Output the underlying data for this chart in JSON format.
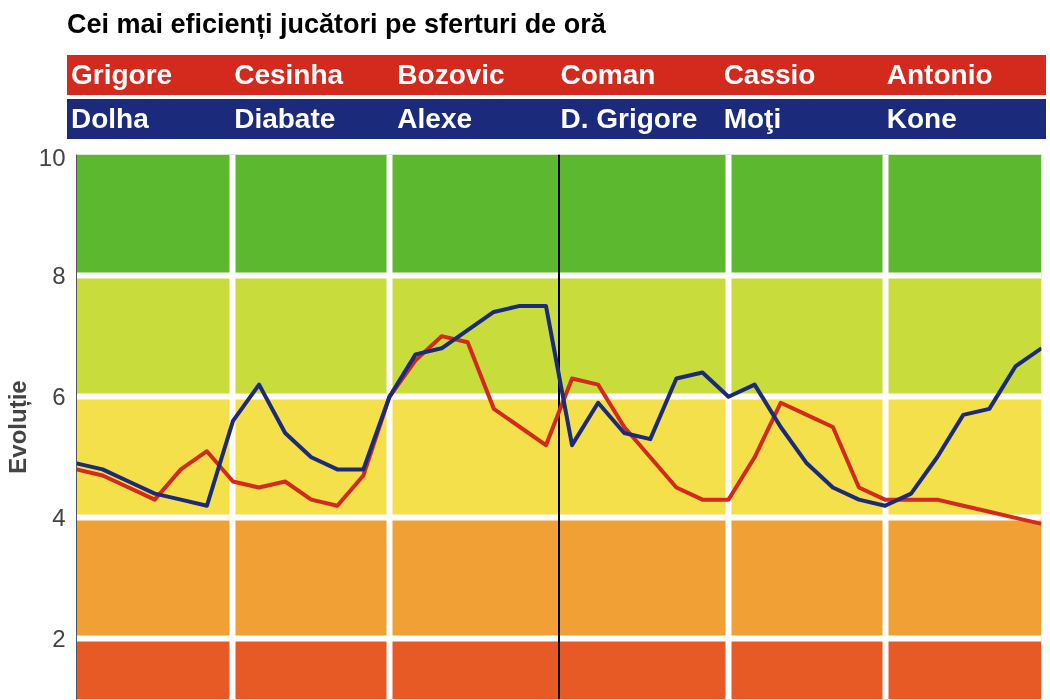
{
  "chart_data": {
    "type": "line",
    "title": "Cei mai eficienți jucători pe sferturi de oră",
    "ylabel": "Evoluție",
    "annotations": [
      "Grigore",
      "Cesinha",
      "Bozovic",
      "Coman",
      "Cassio",
      "Antonio",
      "Dolha",
      "Diabate",
      "Alexe",
      "D. Grigore",
      "Moţi",
      "Kone"
    ],
    "categories": [
      null,
      null,
      null,
      null,
      null,
      null,
      null,
      null,
      null,
      null,
      null,
      null,
      null,
      null,
      null,
      null,
      null,
      null,
      null,
      null,
      null,
      null,
      null,
      null,
      null,
      null,
      null,
      null,
      null,
      null,
      null,
      null,
      null,
      null,
      null,
      null,
      null,
      null
    ],
    "series": [
      {
        "color": "#d42a1e",
        "values": [
          4.8,
          4.7,
          4.5,
          4.3,
          4.8,
          5.1,
          4.6,
          4.5,
          4.6,
          4.3,
          4.2,
          4.7,
          6.0,
          6.6,
          7.0,
          6.9,
          5.8,
          5.5,
          5.2,
          6.3,
          6.2,
          5.5,
          5.0,
          4.5,
          4.3,
          4.3,
          5.0,
          5.9,
          5.7,
          5.5,
          4.5,
          4.3,
          4.3,
          4.3,
          4.2,
          4.1,
          4.0,
          3.9
        ]
      },
      {
        "color": "#1b2a7a",
        "values": [
          4.9,
          4.8,
          4.6,
          4.4,
          4.3,
          4.2,
          5.6,
          6.2,
          5.4,
          5.0,
          4.8,
          4.8,
          6.0,
          6.7,
          6.8,
          7.1,
          7.4,
          7.5,
          7.5,
          5.2,
          5.9,
          5.4,
          5.3,
          6.3,
          6.4,
          6.0,
          6.2,
          5.5,
          4.9,
          4.5,
          4.3,
          4.2,
          4.4,
          5.0,
          5.7,
          5.8,
          6.5,
          6.8
        ]
      }
    ],
    "ylim": [
      1,
      10
    ],
    "yticks": [
      2,
      4,
      6,
      8,
      10
    ],
    "grid": true,
    "line_style": "solid",
    "bands": [
      {
        "axis": "y",
        "from": 1,
        "to": 2,
        "color": "#e85a25"
      },
      {
        "axis": "y",
        "from": 2,
        "to": 4,
        "color": "#f0a035"
      },
      {
        "axis": "y",
        "from": 4,
        "to": 6,
        "color": "#f3e04a"
      },
      {
        "axis": "y",
        "from": 6,
        "to": 8,
        "color": "#c8dc3c"
      },
      {
        "axis": "y",
        "from": 8,
        "to": 10,
        "color": "#5cb82e"
      }
    ]
  }
}
